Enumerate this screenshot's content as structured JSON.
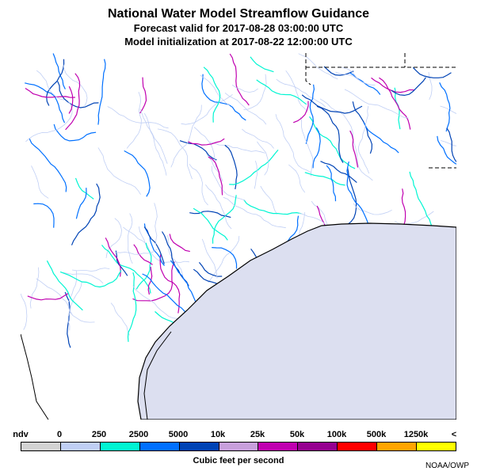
{
  "title": "National Water Model Streamflow Guidance",
  "forecast_valid": "Forecast valid for 2017-08-28 03:00:00 UTC",
  "model_init": "Model initialization at 2017-08-22 12:00:00 UTC",
  "legend": {
    "labels": [
      "ndv",
      "0",
      "250",
      "2500",
      "5000",
      "10k",
      "25k",
      "50k",
      "100k",
      "500k",
      "1250k",
      "<"
    ],
    "colors": [
      "#d3d3d3",
      "#c0cff5",
      "#00f5d2",
      "#0070ff",
      "#0043b5",
      "#c8a0dc",
      "#c000b0",
      "#960090",
      "#ff0000",
      "#ffa500",
      "#ffff00"
    ]
  },
  "units": "Cubic feet per second",
  "credit": "NOAA/OWP",
  "colors": {
    "gulf": "#dcdff0",
    "coast": "#000000",
    "state_border": "#000000",
    "land": "#ffffff"
  }
}
